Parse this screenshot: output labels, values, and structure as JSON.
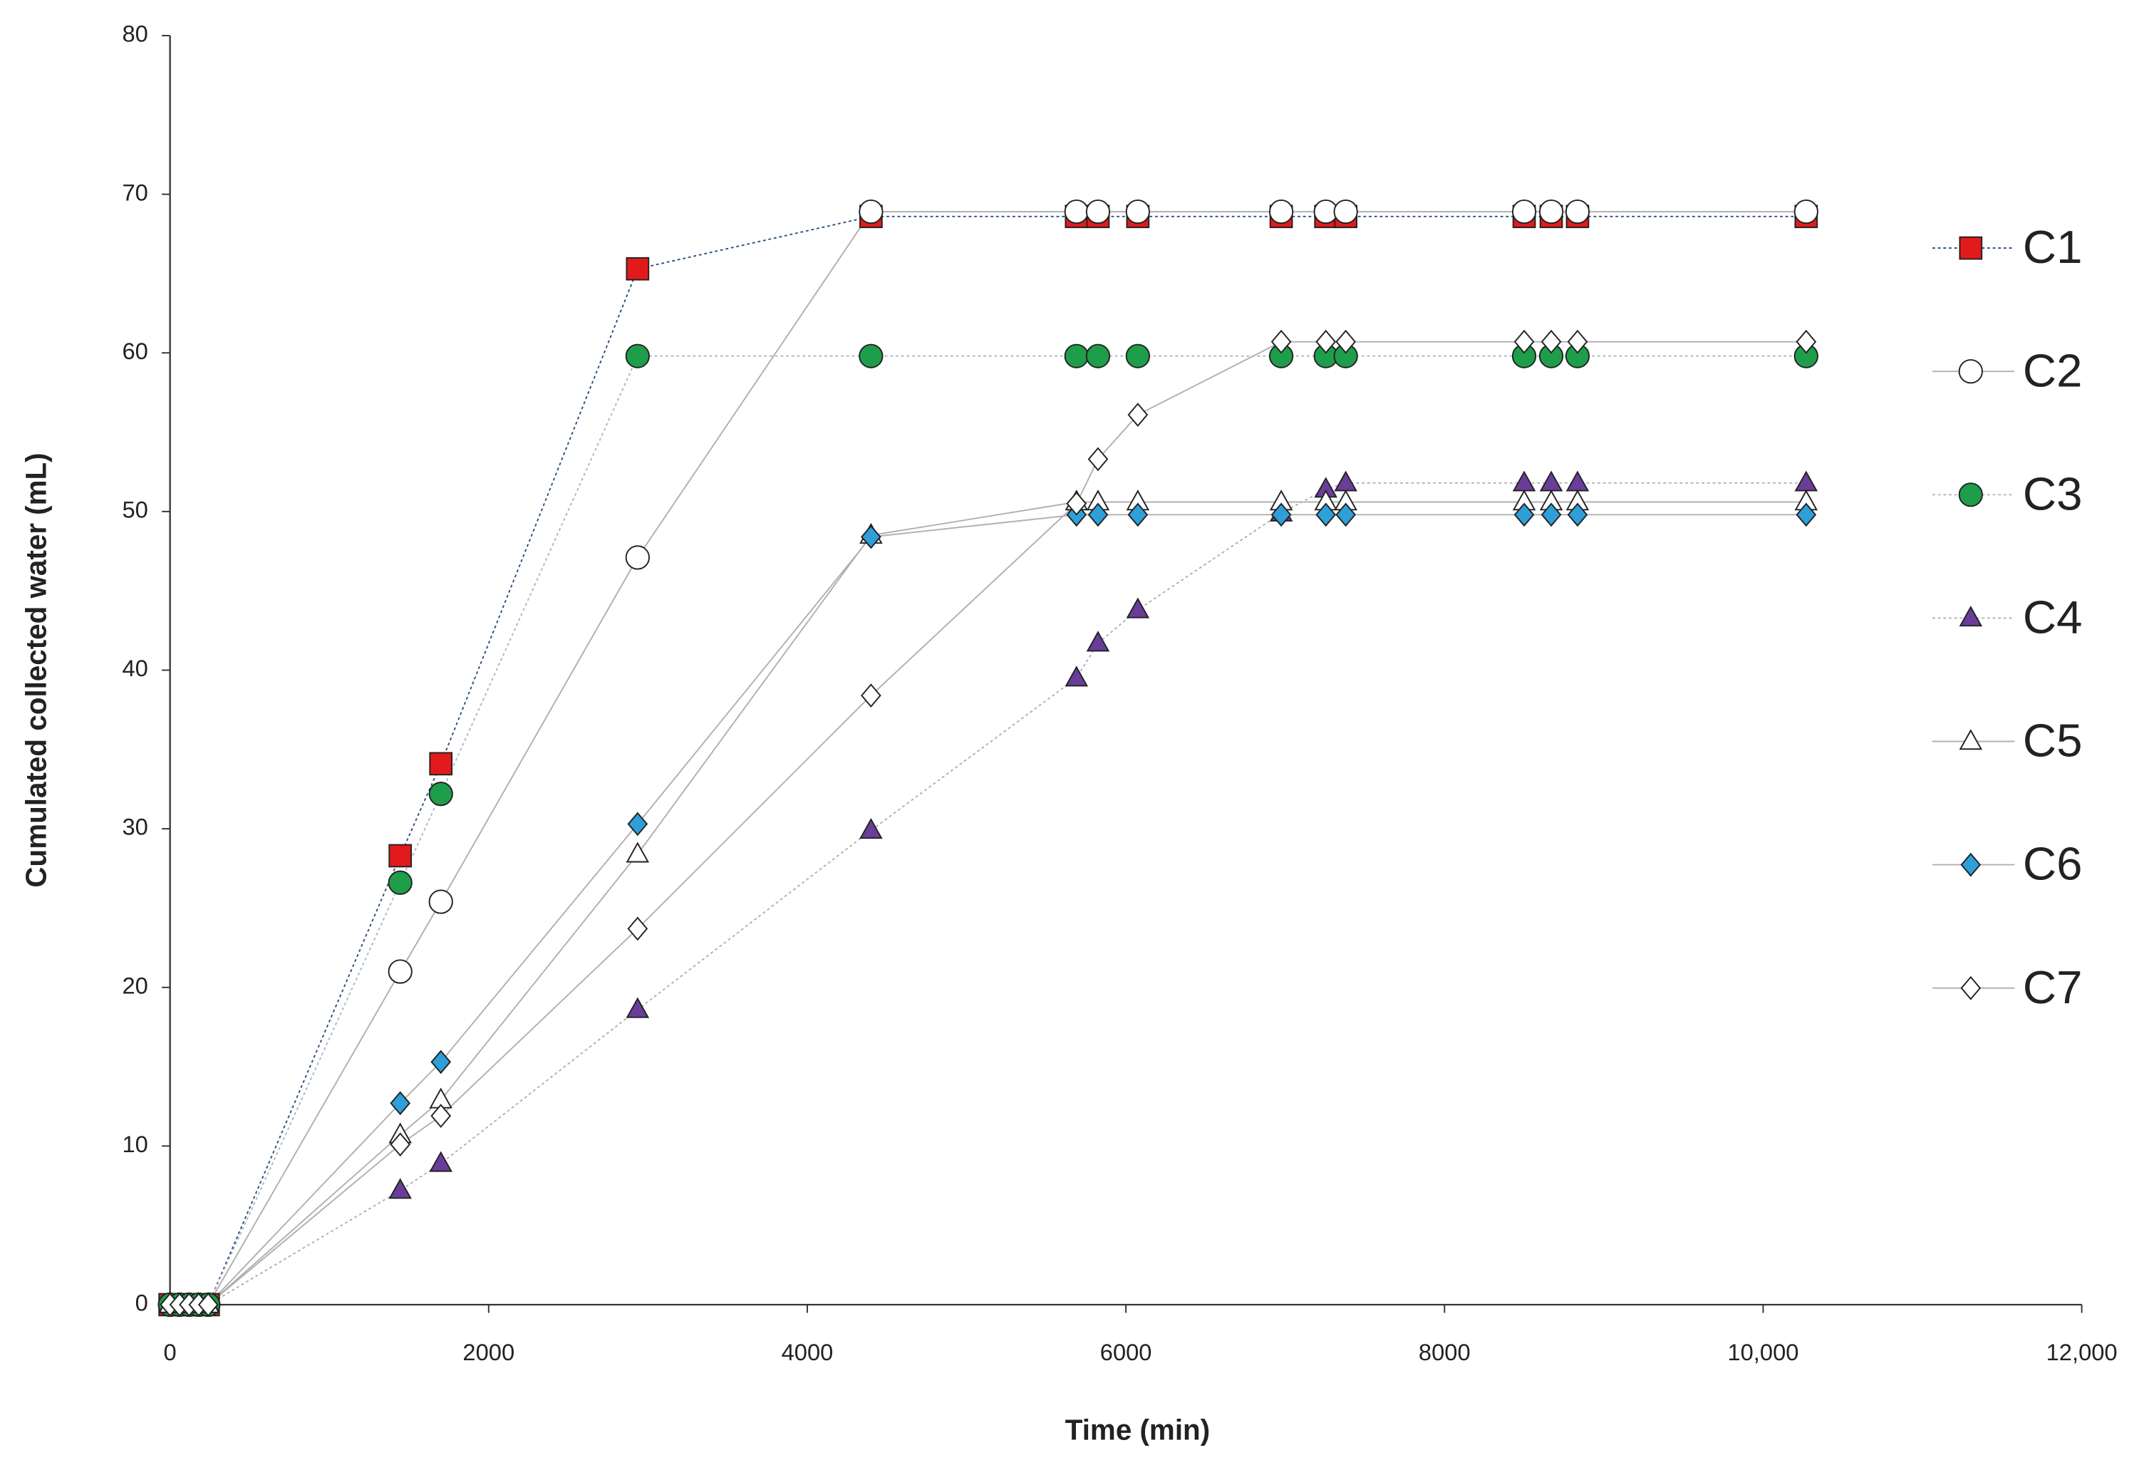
{
  "chart_data": {
    "type": "line",
    "x_label": "Time (min)",
    "y_label": "Cumulated collected water  (mL)",
    "x": [
      0,
      60,
      120,
      180,
      240,
      1445,
      1700,
      2935,
      4400,
      5690,
      5825,
      6075,
      6975,
      7255,
      7380,
      8500,
      8670,
      8835,
      10270
    ],
    "xlim": [
      0,
      12000
    ],
    "xticks": [
      0,
      2000,
      4000,
      6000,
      8000,
      {
        "value": 10000,
        "label": "10,000"
      },
      {
        "value": 12000,
        "label": "12,000"
      }
    ],
    "ylim": [
      0,
      80
    ],
    "yticks": [
      0,
      10,
      20,
      30,
      40,
      50,
      60,
      70,
      80
    ],
    "grid": false,
    "legend": "right",
    "series": [
      {
        "name": "C1",
        "color": "#e31a1c",
        "marker": "square",
        "line_color": "#2f4f7f",
        "line_style": "dotted",
        "values": [
          0,
          0,
          0,
          0,
          0,
          28.3,
          34.1,
          65.3,
          68.6,
          68.6,
          68.6,
          68.6,
          68.6,
          68.6,
          68.6,
          68.6,
          68.6,
          68.6,
          68.6
        ]
      },
      {
        "name": "C2",
        "color": "#ffffff",
        "marker": "circle",
        "line_color": "#b0b0b0",
        "line_style": "solid",
        "values": [
          0,
          0,
          0,
          0,
          0,
          21,
          25.4,
          47.1,
          68.9,
          68.9,
          68.9,
          68.9,
          68.9,
          68.9,
          68.9,
          68.9,
          68.9,
          68.9,
          68.9
        ]
      },
      {
        "name": "C3",
        "color": "#1e9e4a",
        "marker": "circle",
        "line_color": "#a8b8c8",
        "line_style": "dotted",
        "values": [
          0,
          0,
          0,
          0,
          0,
          26.6,
          32.2,
          59.8,
          59.8,
          59.8,
          59.8,
          59.8,
          59.8,
          59.8,
          59.8,
          59.8,
          59.8,
          59.8,
          59.8
        ]
      },
      {
        "name": "C4",
        "color": "#6a3d9a",
        "marker": "triangle",
        "line_color": "#b0b0b0",
        "line_style": "dotted",
        "values": [
          0,
          0,
          0,
          0,
          0,
          7.2,
          8.9,
          18.6,
          29.9,
          39.5,
          41.7,
          43.8,
          49.9,
          51.4,
          51.8,
          51.8,
          51.8,
          51.8,
          51.8
        ]
      },
      {
        "name": "C5",
        "color": "#ffffff",
        "marker": "triangle",
        "line_color": "#b0b0b0",
        "line_style": "solid",
        "values": [
          0,
          0,
          0,
          0,
          0,
          10.7,
          12.9,
          28.4,
          48.5,
          50.6,
          50.6,
          50.6,
          50.6,
          50.6,
          50.6,
          50.6,
          50.6,
          50.6,
          50.6
        ]
      },
      {
        "name": "C6",
        "color": "#2e9fd8",
        "marker": "diamond",
        "line_color": "#b0b0b0",
        "line_style": "solid",
        "values": [
          0,
          0,
          0,
          0,
          0,
          12.7,
          15.3,
          30.3,
          48.4,
          49.8,
          49.8,
          49.8,
          49.8,
          49.8,
          49.8,
          49.8,
          49.8,
          49.8,
          49.8
        ]
      },
      {
        "name": "C7",
        "color": "#ffffff",
        "marker": "diamond",
        "line_color": "#b0b0b0",
        "line_style": "solid",
        "values": [
          0,
          0,
          0,
          0,
          0,
          10.1,
          11.9,
          23.7,
          38.4,
          50.5,
          53.3,
          56.1,
          60.7,
          60.7,
          60.7,
          60.7,
          60.7,
          60.7,
          60.7
        ]
      }
    ]
  }
}
